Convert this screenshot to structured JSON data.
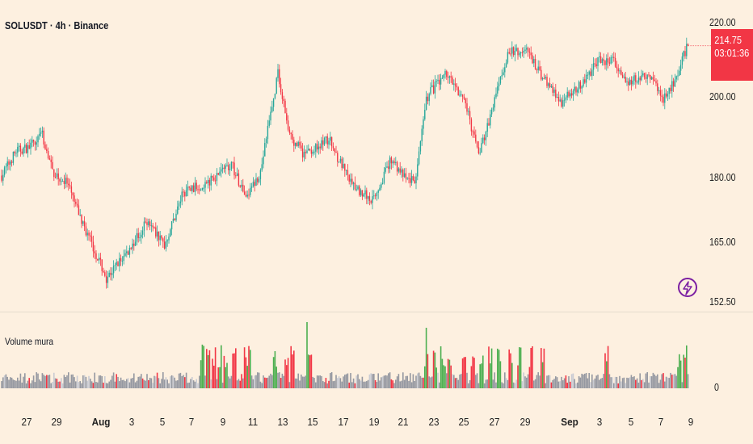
{
  "header": {
    "symbol_title": "SOLUSDT · 4h · Binance",
    "indicator_title": "Volume mura"
  },
  "price_axis": {
    "labels": [
      "220.00",
      "200.00",
      "180.00",
      "165.00",
      "152.50"
    ]
  },
  "last_price": {
    "price": "214.75",
    "countdown": "03:01:36",
    "color": "#f23645"
  },
  "volume_axis": {
    "zero_label": "0"
  },
  "time_axis": {
    "labels": [
      {
        "text": "27",
        "bold": false
      },
      {
        "text": "29",
        "bold": false
      },
      {
        "text": "Aug",
        "bold": true
      },
      {
        "text": "3",
        "bold": false
      },
      {
        "text": "5",
        "bold": false
      },
      {
        "text": "7",
        "bold": false
      },
      {
        "text": "9",
        "bold": false
      },
      {
        "text": "11",
        "bold": false
      },
      {
        "text": "13",
        "bold": false
      },
      {
        "text": "15",
        "bold": false
      },
      {
        "text": "17",
        "bold": false
      },
      {
        "text": "19",
        "bold": false
      },
      {
        "text": "21",
        "bold": false
      },
      {
        "text": "23",
        "bold": false
      },
      {
        "text": "25",
        "bold": false
      },
      {
        "text": "27",
        "bold": false
      },
      {
        "text": "29",
        "bold": false
      },
      {
        "text": "Sep",
        "bold": true
      },
      {
        "text": "3",
        "bold": false
      },
      {
        "text": "5",
        "bold": false
      },
      {
        "text": "7",
        "bold": false
      },
      {
        "text": "9",
        "bold": false
      }
    ]
  },
  "icons": {
    "flash": "lightning-bolt-icon"
  },
  "chart_data": {
    "type": "candlestick",
    "colors": {
      "up": "#26a69a",
      "down": "#f23645",
      "vol_up": "#4caf50",
      "vol_down": "#f23645",
      "vol_neutral": "#9598a1"
    },
    "ylim": [
      152.5,
      222
    ],
    "keyframes": [
      [
        0,
        183
      ],
      [
        10,
        189
      ],
      [
        20,
        190
      ],
      [
        27,
        194
      ],
      [
        35,
        184
      ],
      [
        45,
        181
      ],
      [
        55,
        172
      ],
      [
        72,
        158
      ],
      [
        88,
        165
      ],
      [
        100,
        172
      ],
      [
        112,
        166
      ],
      [
        125,
        179
      ],
      [
        140,
        181
      ],
      [
        158,
        186
      ],
      [
        168,
        177
      ],
      [
        178,
        184
      ],
      [
        190,
        208
      ],
      [
        198,
        193
      ],
      [
        208,
        188
      ],
      [
        225,
        192
      ],
      [
        240,
        181
      ],
      [
        255,
        177
      ],
      [
        268,
        187
      ],
      [
        278,
        182
      ],
      [
        285,
        182
      ],
      [
        292,
        202
      ],
      [
        305,
        208
      ],
      [
        318,
        202
      ],
      [
        328,
        188
      ],
      [
        335,
        196
      ],
      [
        348,
        213
      ],
      [
        360,
        214
      ],
      [
        370,
        208
      ],
      [
        385,
        201
      ],
      [
        398,
        205
      ],
      [
        410,
        211
      ],
      [
        420,
        211
      ],
      [
        430,
        206
      ],
      [
        445,
        208
      ],
      [
        455,
        202
      ],
      [
        461,
        205
      ],
      [
        472,
        215
      ]
    ]
  }
}
